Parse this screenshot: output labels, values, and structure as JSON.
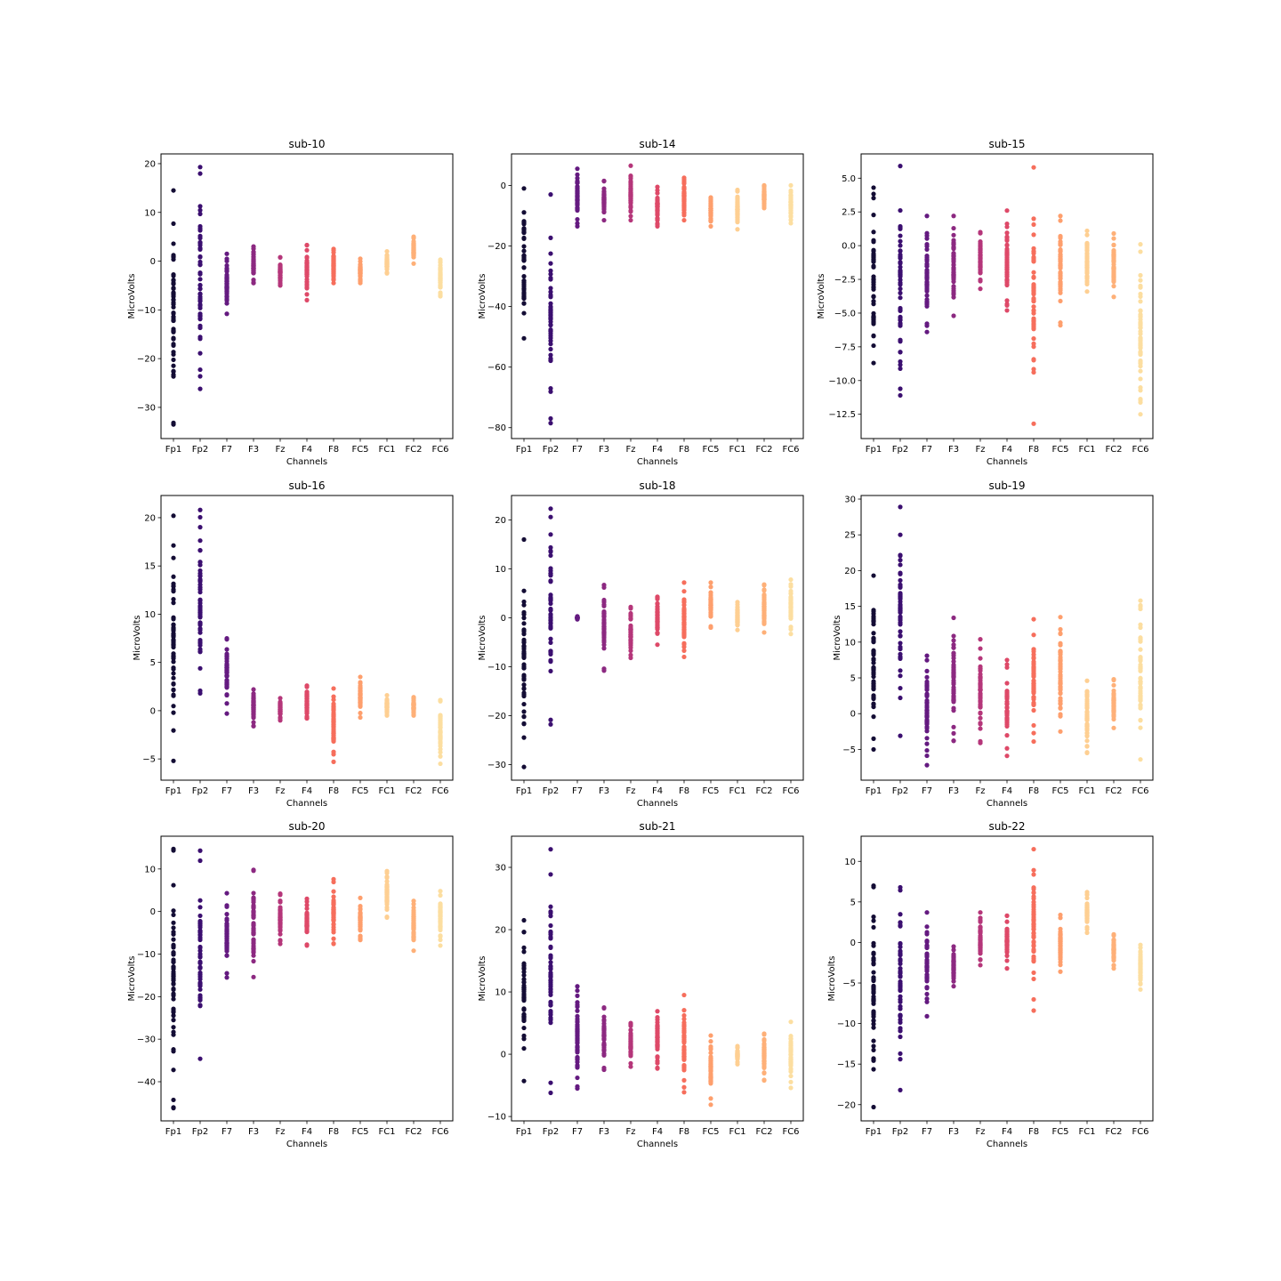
{
  "figure": {
    "channels": [
      "Fp1",
      "Fp2",
      "F7",
      "F3",
      "Fz",
      "F4",
      "F8",
      "FC5",
      "FC1",
      "FC2",
      "FC6"
    ],
    "channel_colors": [
      "#140d35",
      "#3b0f70",
      "#641a80",
      "#8c2981",
      "#b5367a",
      "#de4968",
      "#f66e5c",
      "#fe9f6d",
      "#fecf92",
      "#fcfdbf",
      "#fcfdbf"
    ]
  },
  "chart_data": [
    {
      "type": "scatter",
      "title": "sub-10",
      "xlabel": "Channels",
      "ylabel": "MicroVolts",
      "ylim": [
        -36.4,
        22.0
      ],
      "yticks": [
        20,
        10,
        0,
        -10,
        -20,
        -30
      ],
      "ytick_labels": [
        "20",
        "10",
        "0",
        "−10",
        "−20",
        "−30"
      ],
      "x": [
        "Fp1",
        "Fp2",
        "F7",
        "F3",
        "Fz",
        "F4",
        "F8",
        "FC5",
        "FC1",
        "FC2",
        "FC6"
      ],
      "range_min": [
        -33.5,
        -26.2,
        -10.8,
        -4.5,
        -5.0,
        -8.0,
        -4.5,
        -4.5,
        -2.5,
        -0.5,
        -7.2
      ],
      "range_max": [
        14.5,
        19.3,
        1.5,
        3.0,
        0.8,
        3.3,
        2.5,
        0.5,
        2.0,
        5.0,
        0.3
      ],
      "series_colors": [
        "#140d35",
        "#3b0f70",
        "#641a80",
        "#8c2981",
        "#b5367a",
        "#de4968",
        "#f66e5c",
        "#fe9f6d",
        "#fecf92",
        "#feb078",
        "#fcdea0"
      ]
    },
    {
      "type": "scatter",
      "title": "sub-14",
      "xlabel": "Channels",
      "ylabel": "MicroVolts",
      "ylim": [
        -83.6,
        10.4
      ],
      "yticks": [
        0,
        -20,
        -40,
        -60,
        -80
      ],
      "ytick_labels": [
        "0",
        "−20",
        "−40",
        "−60",
        "−80"
      ],
      "x": [
        "Fp1",
        "Fp2",
        "F7",
        "F3",
        "Fz",
        "F4",
        "F8",
        "FC5",
        "FC1",
        "FC2",
        "FC6"
      ],
      "range_min": [
        -50.5,
        -78.5,
        -13.5,
        -11.5,
        -11.5,
        -13.5,
        -11.5,
        -13.5,
        -14.5,
        -7.5,
        -12.5
      ],
      "range_max": [
        -1.0,
        -3.0,
        5.5,
        1.5,
        6.5,
        -0.5,
        2.5,
        -4.0,
        -1.5,
        0.0,
        0.0
      ],
      "series_colors": [
        "#140d35",
        "#3b0f70",
        "#641a80",
        "#8c2981",
        "#b5367a",
        "#de4968",
        "#f66e5c",
        "#fe9f6d",
        "#fecf92",
        "#feb078",
        "#fcdea0"
      ]
    },
    {
      "type": "scatter",
      "title": "sub-15",
      "xlabel": "Channels",
      "ylabel": "MicroVolts",
      "ylim": [
        -14.3,
        6.8
      ],
      "yticks": [
        5.0,
        2.5,
        0.0,
        -2.5,
        -5.0,
        -7.5,
        -10.0,
        -12.5
      ],
      "ytick_labels": [
        "5.0",
        "2.5",
        "0.0",
        "−2.5",
        "−5.0",
        "−7.5",
        "−10.0",
        "−12.5"
      ],
      "x": [
        "Fp1",
        "Fp2",
        "F7",
        "F3",
        "Fz",
        "F4",
        "F8",
        "FC5",
        "FC1",
        "FC2",
        "FC6"
      ],
      "range_min": [
        -8.7,
        -11.1,
        -6.4,
        -5.2,
        -3.2,
        -4.8,
        -13.2,
        -5.9,
        -3.4,
        -3.8,
        -12.5
      ],
      "range_max": [
        4.3,
        5.9,
        2.2,
        2.2,
        1.0,
        2.6,
        5.8,
        2.2,
        1.1,
        0.9,
        0.1
      ],
      "series_colors": [
        "#140d35",
        "#3b0f70",
        "#641a80",
        "#8c2981",
        "#b5367a",
        "#de4968",
        "#f66e5c",
        "#fe9f6d",
        "#fecf92",
        "#feb078",
        "#fcdea0"
      ]
    },
    {
      "type": "scatter",
      "title": "sub-16",
      "xlabel": "Channels",
      "ylabel": "MicroVolts",
      "ylim": [
        -7.2,
        22.3
      ],
      "yticks": [
        20,
        15,
        10,
        5,
        0,
        -5
      ],
      "ytick_labels": [
        "20",
        "15",
        "10",
        "5",
        "0",
        "−5"
      ],
      "x": [
        "Fp1",
        "Fp2",
        "F7",
        "F3",
        "Fz",
        "F4",
        "F8",
        "FC5",
        "FC1",
        "FC2",
        "FC6"
      ],
      "range_min": [
        -5.2,
        1.8,
        -0.3,
        -1.6,
        -1.0,
        -0.8,
        -5.3,
        -0.7,
        -0.5,
        -0.5,
        -5.5
      ],
      "range_max": [
        20.2,
        20.8,
        7.5,
        2.2,
        1.3,
        2.6,
        2.3,
        3.5,
        1.6,
        1.4,
        1.1
      ],
      "series_colors": [
        "#140d35",
        "#3b0f70",
        "#641a80",
        "#8c2981",
        "#b5367a",
        "#de4968",
        "#f66e5c",
        "#fe9f6d",
        "#fecf92",
        "#feb078",
        "#fcdea0"
      ]
    },
    {
      "type": "scatter",
      "title": "sub-18",
      "xlabel": "Channels",
      "ylabel": "MicroVolts",
      "ylim": [
        -33.2,
        25.0
      ],
      "yticks": [
        20,
        10,
        0,
        -10,
        -20,
        -30
      ],
      "ytick_labels": [
        "20",
        "10",
        "0",
        "−10",
        "−20",
        "−30"
      ],
      "x": [
        "Fp1",
        "Fp2",
        "F7",
        "F3",
        "Fz",
        "F4",
        "F8",
        "FC5",
        "FC1",
        "FC2",
        "FC6"
      ],
      "range_min": [
        -30.5,
        -21.8,
        -0.3,
        -10.8,
        -8.2,
        -5.5,
        -8.0,
        -2.0,
        -2.5,
        -3.0,
        -3.3
      ],
      "range_max": [
        16.0,
        22.3,
        0.3,
        6.7,
        2.2,
        4.3,
        7.2,
        7.2,
        3.2,
        6.8,
        7.8
      ],
      "series_colors": [
        "#140d35",
        "#3b0f70",
        "#641a80",
        "#8c2981",
        "#b5367a",
        "#de4968",
        "#f66e5c",
        "#fe9f6d",
        "#fecf92",
        "#feb078",
        "#fcdea0"
      ]
    },
    {
      "type": "scatter",
      "title": "sub-19",
      "xlabel": "Channels",
      "ylabel": "MicroVolts",
      "ylim": [
        -9.3,
        30.5
      ],
      "yticks": [
        30,
        25,
        20,
        15,
        10,
        5,
        0,
        -5
      ],
      "ytick_labels": [
        "30",
        "25",
        "20",
        "15",
        "10",
        "5",
        "0",
        "−5"
      ],
      "x": [
        "Fp1",
        "Fp2",
        "F7",
        "F3",
        "Fz",
        "F4",
        "F8",
        "FC5",
        "FC1",
        "FC2",
        "FC6"
      ],
      "range_min": [
        -5.0,
        -3.1,
        -7.2,
        -3.8,
        -4.1,
        -5.9,
        -3.9,
        -2.5,
        -5.5,
        -2.0,
        -6.4
      ],
      "range_max": [
        19.3,
        28.9,
        8.1,
        13.4,
        10.4,
        7.5,
        13.2,
        13.5,
        4.6,
        4.8,
        15.8
      ],
      "series_colors": [
        "#140d35",
        "#3b0f70",
        "#641a80",
        "#8c2981",
        "#b5367a",
        "#de4968",
        "#f66e5c",
        "#fe9f6d",
        "#fecf92",
        "#feb078",
        "#fcdea0"
      ]
    },
    {
      "type": "scatter",
      "title": "sub-20",
      "xlabel": "Channels",
      "ylabel": "MicroVolts",
      "ylim": [
        -49.2,
        17.7
      ],
      "yticks": [
        10,
        0,
        -10,
        -20,
        -30,
        -40
      ],
      "ytick_labels": [
        "10",
        "0",
        "−10",
        "−20",
        "−30",
        "−40"
      ],
      "x": [
        "Fp1",
        "Fp2",
        "F7",
        "F3",
        "Fz",
        "F4",
        "F8",
        "FC5",
        "FC1",
        "FC2",
        "FC6"
      ],
      "range_min": [
        -46.2,
        -34.6,
        -15.5,
        -15.4,
        -7.6,
        -8.0,
        -7.6,
        -6.7,
        -1.4,
        -9.2,
        -8.0
      ],
      "range_max": [
        14.7,
        14.3,
        4.3,
        9.8,
        4.2,
        3.0,
        7.6,
        3.2,
        9.5,
        2.5,
        4.8
      ],
      "series_colors": [
        "#140d35",
        "#3b0f70",
        "#641a80",
        "#8c2981",
        "#b5367a",
        "#de4968",
        "#f66e5c",
        "#fe9f6d",
        "#fecf92",
        "#feb078",
        "#fcdea0"
      ]
    },
    {
      "type": "scatter",
      "title": "sub-21",
      "xlabel": "Channels",
      "ylabel": "MicroVolts",
      "ylim": [
        -10.7,
        35.0
      ],
      "yticks": [
        30,
        20,
        10,
        0,
        -10
      ],
      "ytick_labels": [
        "30",
        "20",
        "10",
        "0",
        "−10"
      ],
      "x": [
        "Fp1",
        "Fp2",
        "F7",
        "F3",
        "Fz",
        "F4",
        "F8",
        "FC5",
        "FC1",
        "FC2",
        "FC6"
      ],
      "range_min": [
        -4.3,
        -6.2,
        -5.5,
        -2.5,
        -2.0,
        -2.3,
        -6.1,
        -8.1,
        -1.6,
        -4.2,
        -5.4
      ],
      "range_max": [
        21.5,
        32.9,
        10.9,
        7.5,
        5.0,
        6.9,
        9.5,
        3.0,
        1.3,
        3.3,
        5.2
      ],
      "series_colors": [
        "#140d35",
        "#3b0f70",
        "#641a80",
        "#8c2981",
        "#b5367a",
        "#de4968",
        "#f66e5c",
        "#fe9f6d",
        "#fecf92",
        "#feb078",
        "#fcdea0"
      ]
    },
    {
      "type": "scatter",
      "title": "sub-22",
      "xlabel": "Channels",
      "ylabel": "MicroVolts",
      "ylim": [
        -22.0,
        13.1
      ],
      "yticks": [
        10,
        5,
        0,
        -5,
        -10,
        -15,
        -20
      ],
      "ytick_labels": [
        "10",
        "5",
        "0",
        "−5",
        "−10",
        "−15",
        "−20"
      ],
      "x": [
        "Fp1",
        "Fp2",
        "F7",
        "F3",
        "Fz",
        "F4",
        "F8",
        "FC5",
        "FC1",
        "FC2",
        "FC6"
      ],
      "range_min": [
        -20.3,
        -18.2,
        -9.1,
        -5.4,
        -2.8,
        -3.2,
        -8.4,
        -3.6,
        1.2,
        -3.2,
        -5.8
      ],
      "range_max": [
        7.0,
        6.8,
        3.7,
        -0.5,
        3.7,
        3.3,
        11.5,
        3.4,
        6.2,
        1.0,
        -0.3
      ],
      "series_colors": [
        "#140d35",
        "#3b0f70",
        "#641a80",
        "#8c2981",
        "#b5367a",
        "#de4968",
        "#f66e5c",
        "#fe9f6d",
        "#fecf92",
        "#feb078",
        "#fcdea0"
      ]
    }
  ]
}
